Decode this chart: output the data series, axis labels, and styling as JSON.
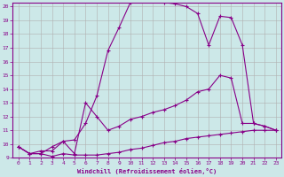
{
  "background_color": "#cce8e8",
  "grid_color": "#b0b0b0",
  "line_color": "#880088",
  "xlabel": "Windchill (Refroidissement éolien,°C)",
  "xlim": [
    -0.5,
    23.5
  ],
  "ylim": [
    9,
    20.3
  ],
  "yticks": [
    9,
    10,
    11,
    12,
    13,
    14,
    15,
    16,
    17,
    18,
    19,
    20
  ],
  "xticks": [
    0,
    1,
    2,
    3,
    4,
    5,
    6,
    7,
    8,
    9,
    10,
    11,
    12,
    13,
    14,
    15,
    16,
    17,
    18,
    19,
    20,
    21,
    22,
    23
  ],
  "curve1_x": [
    0,
    1,
    2,
    3,
    4,
    5,
    6,
    7,
    8,
    9,
    10,
    11,
    12,
    13,
    14,
    15,
    16,
    17,
    18,
    19,
    20,
    21,
    22,
    23
  ],
  "curve1_y": [
    9.8,
    9.3,
    9.3,
    9.1,
    9.3,
    9.2,
    9.2,
    9.2,
    9.3,
    9.4,
    9.6,
    9.7,
    9.9,
    10.1,
    10.2,
    10.4,
    10.5,
    10.6,
    10.7,
    10.8,
    10.9,
    11.0,
    11.0,
    11.0
  ],
  "curve2_x": [
    0,
    1,
    2,
    3,
    4,
    5,
    6,
    7,
    8,
    9,
    10,
    11,
    12,
    13,
    14,
    15,
    16,
    17,
    18,
    19,
    20,
    21,
    22,
    23
  ],
  "curve2_y": [
    9.8,
    9.3,
    9.3,
    9.8,
    10.2,
    9.3,
    13.0,
    12.0,
    11.0,
    11.3,
    11.8,
    12.0,
    12.3,
    12.5,
    12.8,
    13.2,
    13.8,
    14.0,
    15.0,
    14.8,
    11.5,
    11.5,
    11.3,
    11.0
  ],
  "curve3_x": [
    0,
    1,
    2,
    3,
    4,
    5,
    6,
    7,
    8,
    9,
    10,
    11,
    12,
    13,
    14,
    15,
    16,
    17,
    18,
    19,
    20,
    21,
    22,
    23
  ],
  "curve3_y": [
    9.8,
    9.3,
    9.5,
    9.5,
    10.2,
    10.3,
    11.5,
    13.5,
    16.8,
    18.5,
    20.3,
    20.5,
    20.5,
    20.3,
    20.2,
    20.0,
    19.5,
    17.2,
    19.3,
    19.2,
    17.2,
    11.5,
    11.3,
    11.0
  ]
}
